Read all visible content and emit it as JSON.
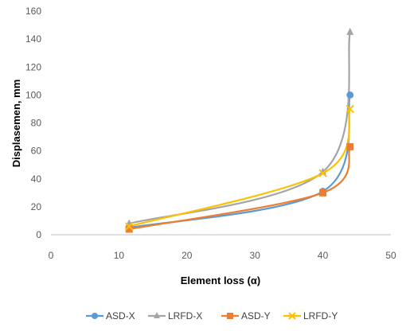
{
  "chart_data": {
    "type": "line",
    "title": "",
    "xlabel": "Element loss (α)",
    "ylabel": "Displasemen, mm",
    "xlim": [
      0,
      50
    ],
    "ylim": [
      0,
      160
    ],
    "xticks": [
      0,
      10,
      20,
      30,
      40,
      50
    ],
    "yticks": [
      0,
      20,
      40,
      60,
      80,
      100,
      120,
      140,
      160
    ],
    "grid": false,
    "legend_position": "bottom",
    "series": [
      {
        "name": "ASD-X",
        "color": "#5B9BD5",
        "marker": "circle",
        "x": [
          11.5,
          40,
          44
        ],
        "y": [
          5,
          31,
          100
        ]
      },
      {
        "name": "LRFD-X",
        "color": "#A5A5A5",
        "marker": "triangle",
        "x": [
          11.5,
          40,
          44
        ],
        "y": [
          8,
          45,
          145
        ]
      },
      {
        "name": "ASD-Y",
        "color": "#ED7D31",
        "marker": "square",
        "x": [
          11.5,
          40,
          44
        ],
        "y": [
          4,
          30,
          63
        ]
      },
      {
        "name": "LRFD-Y",
        "color": "#FFC000",
        "marker": "x",
        "x": [
          11.5,
          40,
          44
        ],
        "y": [
          6,
          44,
          90
        ]
      }
    ]
  }
}
